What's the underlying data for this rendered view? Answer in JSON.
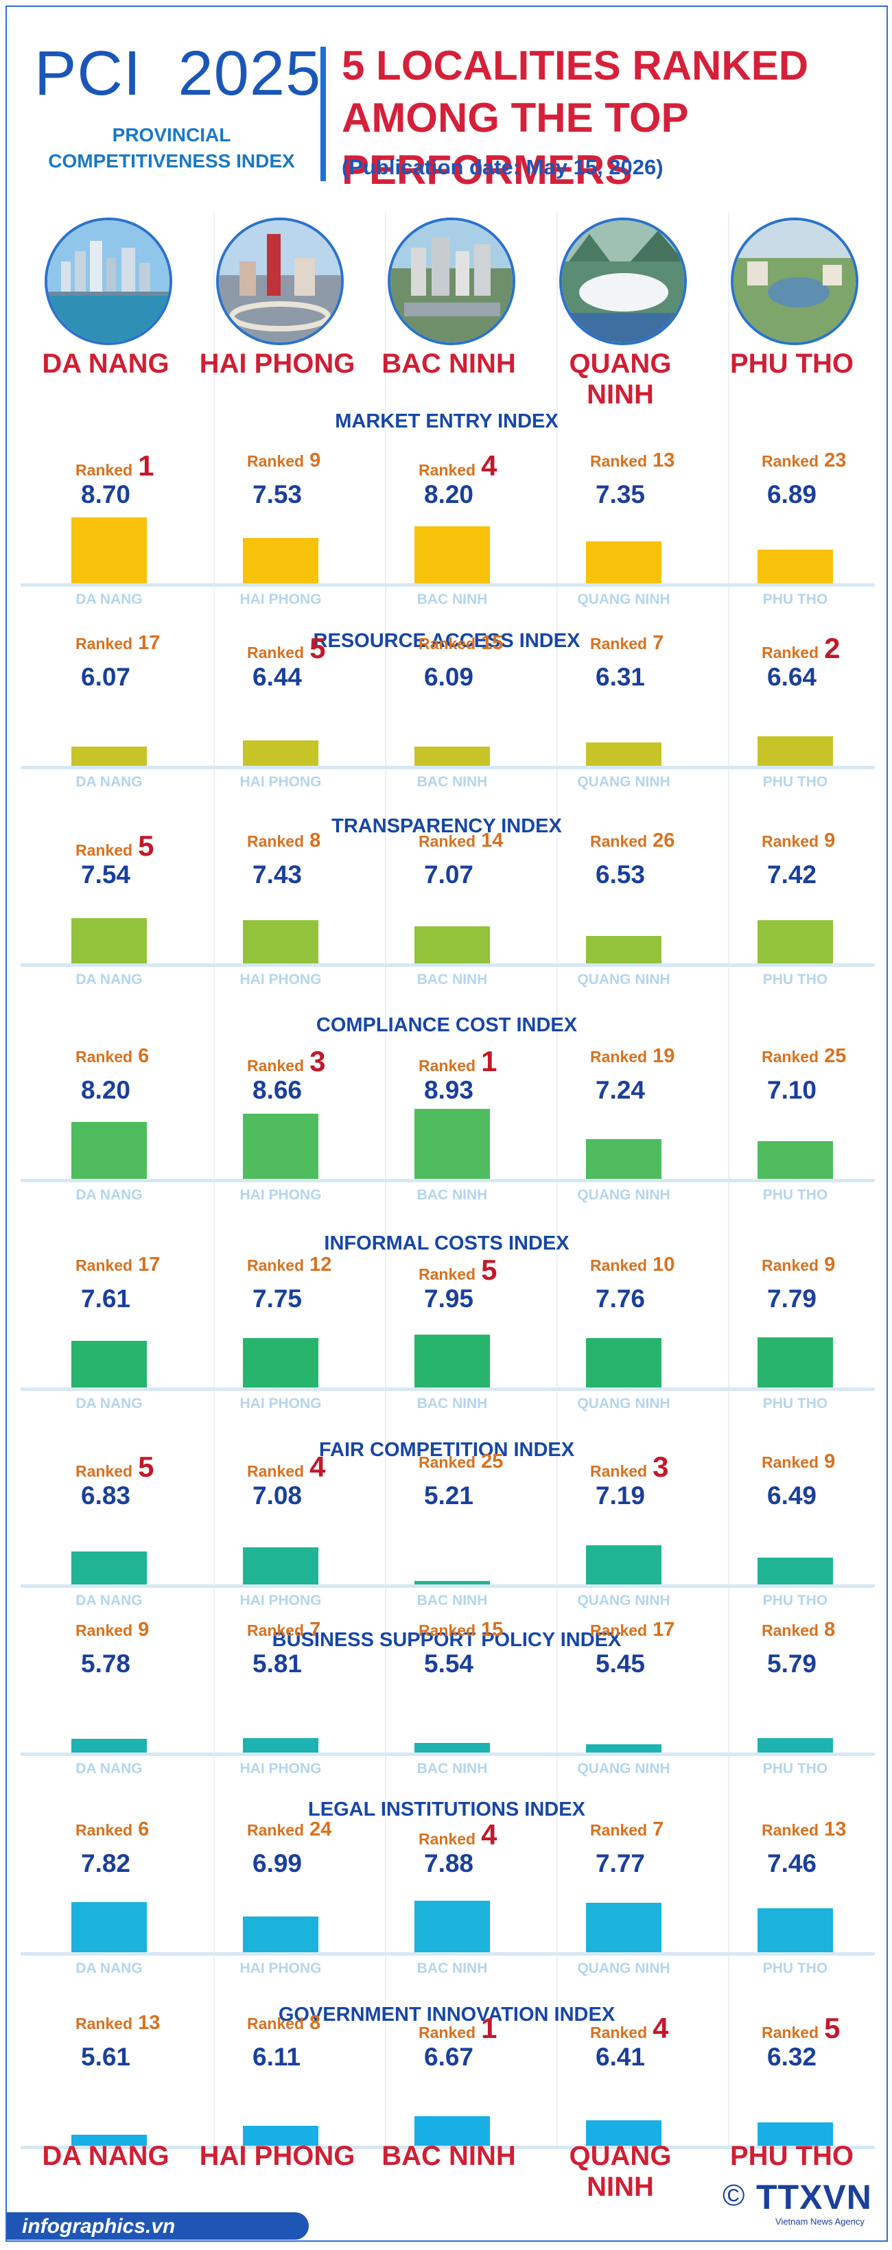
{
  "header": {
    "title": "PCI  2025",
    "subtitle_line1": "PROVINCIAL",
    "subtitle_line2": "COMPETITIVENESS INDEX",
    "headline_line1": "5 LOCALITIES RANKED",
    "headline_line2": "AMONG THE TOP PERFORMERS",
    "publication": "(Publication date: May 15, 2026)"
  },
  "colors": {
    "primary_blue": "#1a56b8",
    "headline_red": "#d6203a",
    "rank_orange": "#d9711f",
    "rank_top_red": "#c4182b",
    "value_navy": "#1a3f9c"
  },
  "ranked_label": "Ranked",
  "chart_data": {
    "type": "bar",
    "categories": [
      "DA NANG",
      "HAI PHONG",
      "BAC NINH",
      "QUANG NINH",
      "PHU THO"
    ],
    "panels": [
      {
        "title": "MARKET ENTRY INDEX",
        "values": [
          8.7,
          7.53,
          8.2,
          7.35,
          6.89
        ],
        "ranks": [
          1,
          9,
          4,
          13,
          23
        ],
        "color": "#f8c10a"
      },
      {
        "title": "RESOURCE ACCESS INDEX",
        "values": [
          6.07,
          6.44,
          6.09,
          6.31,
          6.64
        ],
        "ranks": [
          17,
          5,
          15,
          7,
          2
        ],
        "color": "#c7c427"
      },
      {
        "title": "TRANSPARENCY INDEX",
        "values": [
          7.54,
          7.43,
          7.07,
          6.53,
          7.42
        ],
        "ranks": [
          5,
          8,
          14,
          26,
          9
        ],
        "color": "#93c23b"
      },
      {
        "title": "COMPLIANCE COST INDEX",
        "values": [
          8.2,
          8.66,
          8.93,
          7.24,
          7.1
        ],
        "ranks": [
          6,
          3,
          1,
          19,
          25
        ],
        "color": "#4fbd5e"
      },
      {
        "title": "INFORMAL COSTS INDEX",
        "values": [
          7.61,
          7.75,
          7.95,
          7.76,
          7.79
        ],
        "ranks": [
          17,
          12,
          5,
          10,
          9
        ],
        "color": "#27b56d"
      },
      {
        "title": "FAIR COMPETITION INDEX",
        "values": [
          6.83,
          7.08,
          5.21,
          7.19,
          6.49
        ],
        "ranks": [
          5,
          4,
          25,
          3,
          9
        ],
        "color": "#1fb594"
      },
      {
        "title": "BUSINESS SUPPORT POLICY INDEX",
        "values": [
          5.78,
          5.81,
          5.54,
          5.45,
          5.79
        ],
        "ranks": [
          9,
          7,
          15,
          17,
          8
        ],
        "color": "#1cb3b0"
      },
      {
        "title": "LEGAL INSTITUTIONS INDEX",
        "values": [
          7.82,
          6.99,
          7.88,
          7.77,
          7.46
        ],
        "ranks": [
          6,
          24,
          4,
          7,
          13
        ],
        "color": "#1bb2dc"
      },
      {
        "title": "GOVERNMENT INNOVATION INDEX",
        "values": [
          5.61,
          6.11,
          6.67,
          6.41,
          6.32
        ],
        "ranks": [
          13,
          8,
          1,
          4,
          5
        ],
        "color": "#18aee6"
      }
    ]
  },
  "footer": {
    "site": "infographics.vn",
    "copyright": "©",
    "agency": "TTXVN",
    "agency_sub": "Vietnam News Agency"
  }
}
